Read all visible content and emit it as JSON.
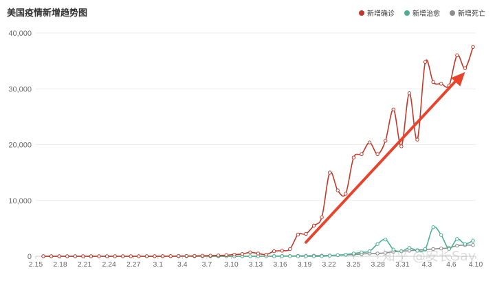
{
  "title": "美国疫情新增趋势图",
  "legend": [
    {
      "label": "新增确诊",
      "color": "#c0392b"
    },
    {
      "label": "新增治愈",
      "color": "#4caf91"
    },
    {
      "label": "新增死亡",
      "color": "#8c8c8c"
    }
  ],
  "watermark": "知乎 @安长Say",
  "arrow_color": "#e8432b",
  "chart_data": {
    "type": "line",
    "title": "美国疫情新增趋势图",
    "xlabel": "",
    "ylabel": "",
    "ylim": [
      0,
      40000
    ],
    "yticks": [
      0,
      10000,
      20000,
      30000,
      40000
    ],
    "ytick_labels": [
      "0",
      "10,000",
      "20,000",
      "30,000",
      "40,000"
    ],
    "xtick_labels": [
      "2.15",
      "2.18",
      "2.21",
      "2.24",
      "2.27",
      "3.1",
      "3.4",
      "3.7",
      "3.10",
      "3.13",
      "3.16",
      "3.19",
      "3.22",
      "3.25",
      "3.28",
      "3.31",
      "4.3",
      "4.6",
      "4.10"
    ],
    "grid": true,
    "legend_position": "top-right",
    "x": [
      "2.16",
      "2.17",
      "2.18",
      "2.19",
      "2.20",
      "2.21",
      "2.22",
      "2.23",
      "2.24",
      "2.25",
      "2.26",
      "2.27",
      "2.28",
      "2.29",
      "3.1",
      "3.2",
      "3.3",
      "3.4",
      "3.5",
      "3.6",
      "3.7",
      "3.8",
      "3.9",
      "3.10",
      "3.11",
      "3.12",
      "3.13",
      "3.14",
      "3.15",
      "3.16",
      "3.17",
      "3.18",
      "3.19",
      "3.20",
      "3.21",
      "3.22",
      "3.23",
      "3.24",
      "3.25",
      "3.26",
      "3.27",
      "3.28",
      "3.29",
      "3.30",
      "3.31",
      "4.1",
      "4.2",
      "4.3",
      "4.4",
      "4.5",
      "4.6",
      "4.7",
      "4.8",
      "4.9",
      "4.10"
    ],
    "series": [
      {
        "name": "新增确诊",
        "color": "#c0392b",
        "values": [
          0,
          0,
          0,
          0,
          0,
          0,
          0,
          0,
          0,
          0,
          0,
          0,
          0,
          0,
          10,
          20,
          30,
          50,
          60,
          70,
          100,
          110,
          150,
          200,
          300,
          400,
          700,
          500,
          300,
          900,
          1000,
          1300,
          3900,
          4000,
          5500,
          7000,
          15000,
          11800,
          11200,
          17700,
          18300,
          20400,
          18300,
          20700,
          26300,
          19700,
          29200,
          20900,
          34800,
          31200,
          30900,
          30600,
          36000,
          33700,
          37500
        ]
      },
      {
        "name": "新增治愈",
        "color": "#4caf91",
        "values": [
          0,
          0,
          0,
          0,
          0,
          0,
          0,
          0,
          0,
          0,
          0,
          0,
          0,
          0,
          0,
          0,
          0,
          0,
          0,
          0,
          0,
          0,
          0,
          0,
          0,
          0,
          0,
          0,
          0,
          0,
          0,
          0,
          0,
          0,
          0,
          0,
          100,
          200,
          300,
          500,
          700,
          900,
          2200,
          3000,
          1200,
          900,
          1500,
          1000,
          1300,
          5200,
          3800,
          1300,
          3100,
          2200,
          2800
        ]
      },
      {
        "name": "新增死亡",
        "color": "#8c8c8c",
        "values": [
          0,
          0,
          0,
          0,
          0,
          0,
          0,
          0,
          0,
          0,
          0,
          0,
          0,
          0,
          0,
          0,
          0,
          0,
          0,
          0,
          0,
          0,
          0,
          0,
          0,
          0,
          10,
          20,
          30,
          40,
          50,
          60,
          70,
          90,
          100,
          120,
          150,
          200,
          250,
          300,
          400,
          500,
          500,
          600,
          800,
          900,
          1000,
          1100,
          1200,
          1300,
          1400,
          1500,
          1900,
          2000,
          2000
        ]
      }
    ]
  }
}
